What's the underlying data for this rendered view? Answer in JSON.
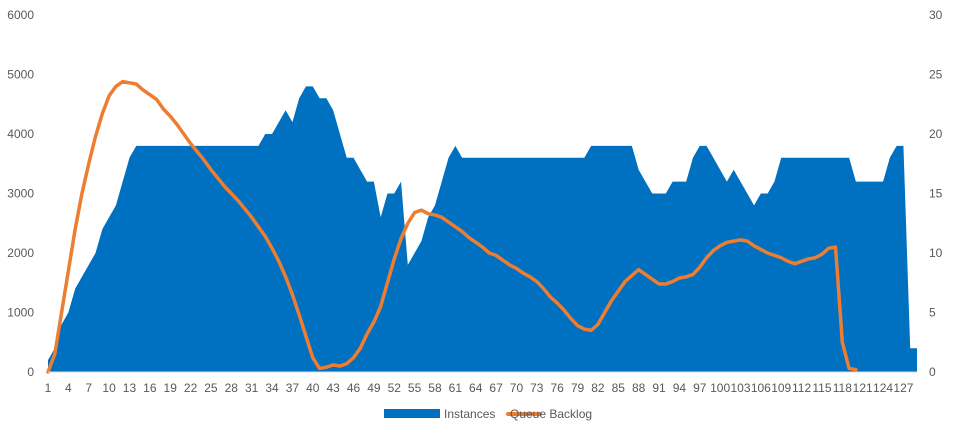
{
  "chart_data": {
    "type": "area+line",
    "title": "",
    "xlabel": "",
    "ylabel": "",
    "y2label": "",
    "x_range": [
      1,
      129
    ],
    "x_tick_labels": [
      "1",
      "4",
      "7",
      "10",
      "13",
      "16",
      "19",
      "22",
      "25",
      "28",
      "31",
      "34",
      "37",
      "40",
      "43",
      "46",
      "49",
      "52",
      "55",
      "58",
      "61",
      "64",
      "67",
      "70",
      "73",
      "76",
      "79",
      "82",
      "85",
      "88",
      "91",
      "94",
      "97",
      "100",
      "103",
      "106",
      "109",
      "112",
      "115",
      "118",
      "121",
      "124",
      "127"
    ],
    "ylim": [
      0,
      6000
    ],
    "y_ticks": [
      "0",
      "1000",
      "2000",
      "3000",
      "4000",
      "5000",
      "6000"
    ],
    "y2lim": [
      0,
      30
    ],
    "y2_ticks": [
      "0",
      "5",
      "10",
      "15",
      "20",
      "25",
      "30"
    ],
    "grid": false,
    "legend_position": "bottom",
    "series": [
      {
        "name": "Instances",
        "type": "area",
        "axis": "left",
        "color": "#0070C0",
        "points": [
          [
            1,
            200
          ],
          [
            2,
            400
          ],
          [
            3,
            800
          ],
          [
            4,
            1000
          ],
          [
            5,
            1400
          ],
          [
            6,
            1600
          ],
          [
            7,
            1800
          ],
          [
            8,
            2000
          ],
          [
            9,
            2400
          ],
          [
            10,
            2600
          ],
          [
            11,
            2800
          ],
          [
            12,
            3200
          ],
          [
            13,
            3600
          ],
          [
            14,
            3800
          ],
          [
            15,
            3800
          ],
          [
            16,
            3800
          ],
          [
            17,
            3800
          ],
          [
            18,
            3800
          ],
          [
            19,
            3800
          ],
          [
            20,
            3800
          ],
          [
            21,
            3800
          ],
          [
            22,
            3800
          ],
          [
            23,
            3800
          ],
          [
            24,
            3800
          ],
          [
            25,
            3800
          ],
          [
            26,
            3800
          ],
          [
            27,
            3800
          ],
          [
            28,
            3800
          ],
          [
            29,
            3800
          ],
          [
            30,
            3800
          ],
          [
            31,
            3800
          ],
          [
            32,
            3800
          ],
          [
            33,
            4000
          ],
          [
            34,
            4000
          ],
          [
            35,
            4200
          ],
          [
            36,
            4400
          ],
          [
            37,
            4200
          ],
          [
            38,
            4600
          ],
          [
            39,
            4800
          ],
          [
            40,
            4800
          ],
          [
            41,
            4600
          ],
          [
            42,
            4600
          ],
          [
            43,
            4400
          ],
          [
            44,
            4000
          ],
          [
            45,
            3600
          ],
          [
            46,
            3600
          ],
          [
            47,
            3400
          ],
          [
            48,
            3200
          ],
          [
            49,
            3200
          ],
          [
            50,
            2600
          ],
          [
            51,
            3000
          ],
          [
            52,
            3000
          ],
          [
            53,
            3200
          ],
          [
            54,
            1800
          ],
          [
            55,
            2000
          ],
          [
            56,
            2200
          ],
          [
            57,
            2600
          ],
          [
            58,
            2800
          ],
          [
            59,
            3200
          ],
          [
            60,
            3600
          ],
          [
            61,
            3800
          ],
          [
            62,
            3600
          ],
          [
            63,
            3600
          ],
          [
            64,
            3600
          ],
          [
            65,
            3600
          ],
          [
            66,
            3600
          ],
          [
            67,
            3600
          ],
          [
            68,
            3600
          ],
          [
            69,
            3600
          ],
          [
            70,
            3600
          ],
          [
            71,
            3600
          ],
          [
            72,
            3600
          ],
          [
            73,
            3600
          ],
          [
            74,
            3600
          ],
          [
            75,
            3600
          ],
          [
            76,
            3600
          ],
          [
            77,
            3600
          ],
          [
            78,
            3600
          ],
          [
            79,
            3600
          ],
          [
            80,
            3600
          ],
          [
            81,
            3800
          ],
          [
            82,
            3800
          ],
          [
            83,
            3800
          ],
          [
            84,
            3800
          ],
          [
            85,
            3800
          ],
          [
            86,
            3800
          ],
          [
            87,
            3800
          ],
          [
            88,
            3400
          ],
          [
            89,
            3200
          ],
          [
            90,
            3000
          ],
          [
            91,
            3000
          ],
          [
            92,
            3000
          ],
          [
            93,
            3200
          ],
          [
            94,
            3200
          ],
          [
            95,
            3200
          ],
          [
            96,
            3600
          ],
          [
            97,
            3800
          ],
          [
            98,
            3800
          ],
          [
            99,
            3600
          ],
          [
            100,
            3400
          ],
          [
            101,
            3200
          ],
          [
            102,
            3400
          ],
          [
            103,
            3200
          ],
          [
            104,
            3000
          ],
          [
            105,
            2800
          ],
          [
            106,
            3000
          ],
          [
            107,
            3000
          ],
          [
            108,
            3200
          ],
          [
            109,
            3600
          ],
          [
            110,
            3600
          ],
          [
            111,
            3600
          ],
          [
            112,
            3600
          ],
          [
            113,
            3600
          ],
          [
            114,
            3600
          ],
          [
            115,
            3600
          ],
          [
            116,
            3600
          ],
          [
            117,
            3600
          ],
          [
            118,
            3600
          ],
          [
            119,
            3600
          ],
          [
            120,
            3200
          ],
          [
            121,
            3200
          ],
          [
            122,
            3200
          ],
          [
            123,
            3200
          ],
          [
            124,
            3200
          ],
          [
            125,
            3600
          ],
          [
            126,
            3800
          ],
          [
            127,
            3800
          ],
          [
            128,
            400
          ],
          [
            129,
            400
          ]
        ]
      },
      {
        "name": "Queue Backlog",
        "type": "line",
        "axis": "right",
        "color": "#ED7D31",
        "points": [
          [
            1,
            0
          ],
          [
            2,
            1.5
          ],
          [
            3,
            5
          ],
          [
            4,
            8.5
          ],
          [
            5,
            12
          ],
          [
            6,
            15
          ],
          [
            7,
            17.5
          ],
          [
            8,
            19.8
          ],
          [
            9,
            21.7
          ],
          [
            10,
            23.2
          ],
          [
            11,
            24
          ],
          [
            12,
            24.4
          ],
          [
            13,
            24.3
          ],
          [
            14,
            24.2
          ],
          [
            15,
            23.7
          ],
          [
            16,
            23.3
          ],
          [
            17,
            22.9
          ],
          [
            18,
            22.1
          ],
          [
            19,
            21.5
          ],
          [
            20,
            20.8
          ],
          [
            21,
            20
          ],
          [
            22,
            19.2
          ],
          [
            23,
            18.5
          ],
          [
            24,
            17.8
          ],
          [
            25,
            17
          ],
          [
            26,
            16.3
          ],
          [
            27,
            15.6
          ],
          [
            28,
            15
          ],
          [
            29,
            14.4
          ],
          [
            30,
            13.7
          ],
          [
            31,
            13
          ],
          [
            32,
            12.2
          ],
          [
            33,
            11.4
          ],
          [
            34,
            10.4
          ],
          [
            35,
            9.3
          ],
          [
            36,
            8
          ],
          [
            37,
            6.5
          ],
          [
            38,
            4.8
          ],
          [
            39,
            3
          ],
          [
            40,
            1.2
          ],
          [
            41,
            0.3
          ],
          [
            42,
            0.4
          ],
          [
            43,
            0.6
          ],
          [
            44,
            0.5
          ],
          [
            45,
            0.7
          ],
          [
            46,
            1.2
          ],
          [
            47,
            2
          ],
          [
            48,
            3.2
          ],
          [
            49,
            4.2
          ],
          [
            50,
            5.5
          ],
          [
            51,
            7.5
          ],
          [
            52,
            9.5
          ],
          [
            53,
            11.2
          ],
          [
            54,
            12.5
          ],
          [
            55,
            13.4
          ],
          [
            56,
            13.6
          ],
          [
            57,
            13.3
          ],
          [
            58,
            13.2
          ],
          [
            59,
            13
          ],
          [
            60,
            12.6
          ],
          [
            61,
            12.2
          ],
          [
            62,
            11.8
          ],
          [
            63,
            11.3
          ],
          [
            64,
            10.9
          ],
          [
            65,
            10.5
          ],
          [
            66,
            10
          ],
          [
            67,
            9.8
          ],
          [
            68,
            9.4
          ],
          [
            69,
            9
          ],
          [
            70,
            8.7
          ],
          [
            71,
            8.3
          ],
          [
            72,
            8
          ],
          [
            73,
            7.6
          ],
          [
            74,
            7
          ],
          [
            75,
            6.3
          ],
          [
            76,
            5.8
          ],
          [
            77,
            5.2
          ],
          [
            78,
            4.5
          ],
          [
            79,
            3.9
          ],
          [
            80,
            3.6
          ],
          [
            81,
            3.5
          ],
          [
            82,
            4
          ],
          [
            83,
            5
          ],
          [
            84,
            6
          ],
          [
            85,
            6.8
          ],
          [
            86,
            7.6
          ],
          [
            87,
            8.1
          ],
          [
            88,
            8.6
          ],
          [
            89,
            8.2
          ],
          [
            90,
            7.8
          ],
          [
            91,
            7.4
          ],
          [
            92,
            7.4
          ],
          [
            93,
            7.6
          ],
          [
            94,
            7.9
          ],
          [
            95,
            8
          ],
          [
            96,
            8.2
          ],
          [
            97,
            8.8
          ],
          [
            98,
            9.6
          ],
          [
            99,
            10.2
          ],
          [
            100,
            10.6
          ],
          [
            101,
            10.9
          ],
          [
            102,
            11
          ],
          [
            103,
            11.1
          ],
          [
            104,
            11
          ],
          [
            105,
            10.6
          ],
          [
            106,
            10.3
          ],
          [
            107,
            10
          ],
          [
            108,
            9.8
          ],
          [
            109,
            9.6
          ],
          [
            110,
            9.3
          ],
          [
            111,
            9.1
          ],
          [
            112,
            9.3
          ],
          [
            113,
            9.5
          ],
          [
            114,
            9.6
          ],
          [
            115,
            9.9
          ],
          [
            116,
            10.4
          ],
          [
            117,
            10.5
          ],
          [
            118,
            2.5
          ],
          [
            119,
            0.3
          ],
          [
            120,
            0.2
          ]
        ]
      }
    ]
  }
}
